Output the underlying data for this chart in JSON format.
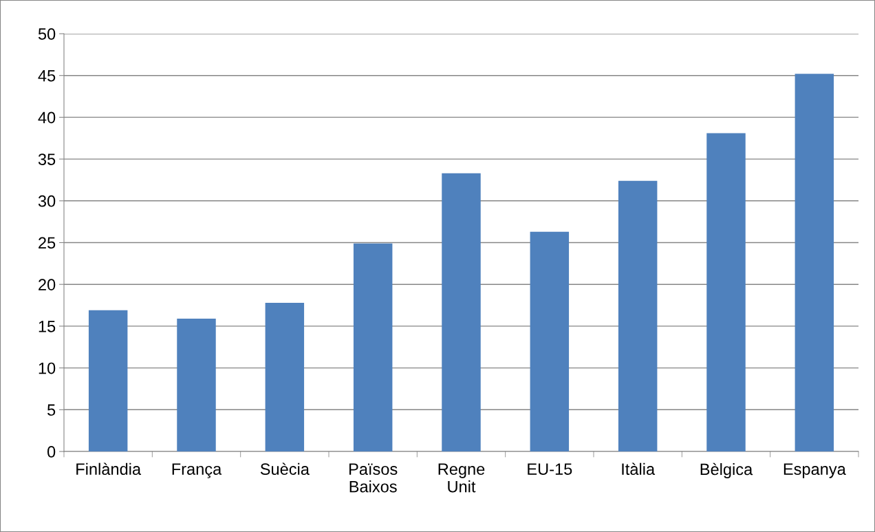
{
  "chart_data": {
    "type": "bar",
    "categories": [
      "Finlàndia",
      "França",
      "Suècia",
      "Països Baixos",
      "Regne Unit",
      "EU-15",
      "Itàlia",
      "Bèlgica",
      "Espanya"
    ],
    "values": [
      16.9,
      15.9,
      17.8,
      24.9,
      33.3,
      26.3,
      32.4,
      38.1,
      45.2
    ],
    "color": "#4f81bd",
    "ylim": [
      0,
      50
    ],
    "yticks": [
      0,
      5,
      10,
      15,
      20,
      25,
      30,
      35,
      40,
      45,
      50
    ],
    "grid": "y",
    "legend": false
  }
}
